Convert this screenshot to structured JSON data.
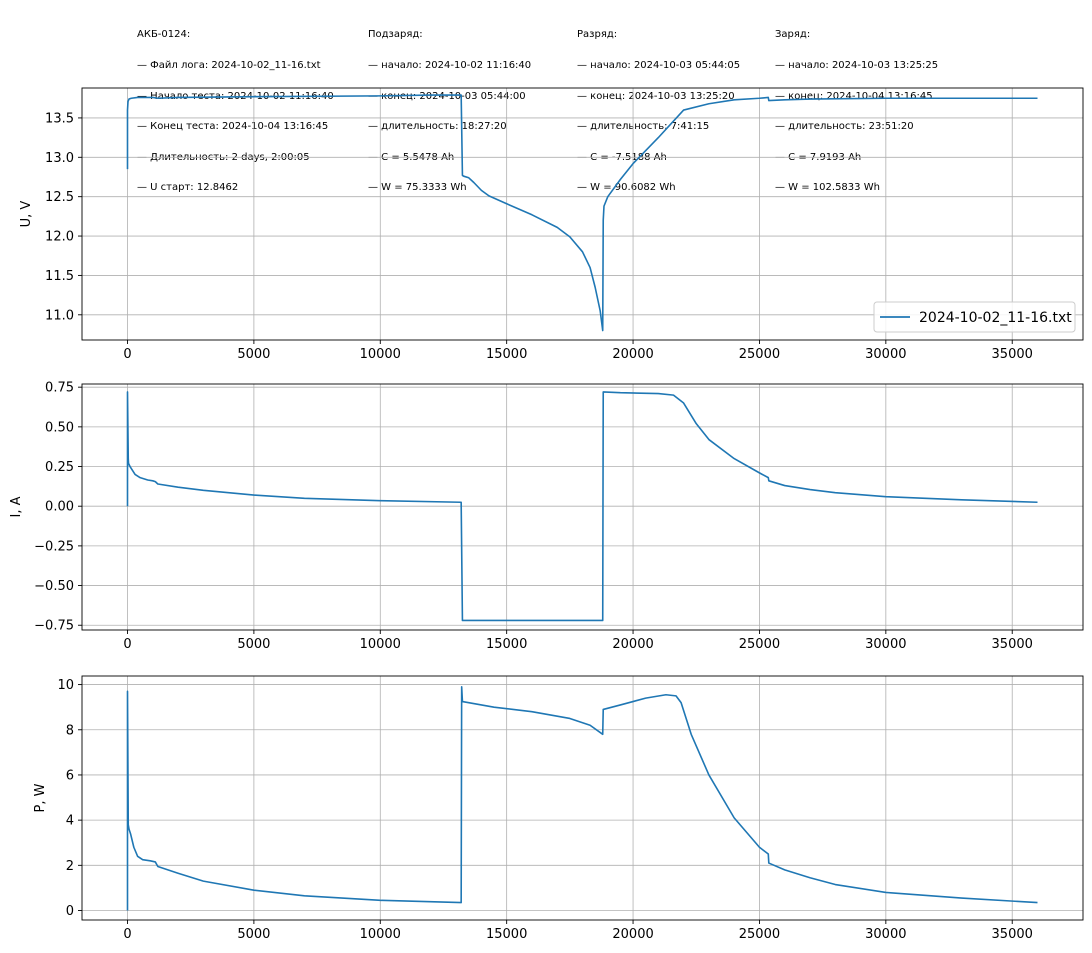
{
  "info": {
    "columns": [
      {
        "title": "АКБ-0124:",
        "lines": [
          "— Файл лога: 2024-10-02_11-16.txt",
          "— Начало теста: 2024-10-02 11:16:40",
          "— Конец теста: 2024-10-04 13:16:45",
          "— Длительность: 2 days, 2:00:05",
          "— U старт: 12.8462"
        ]
      },
      {
        "title": "Подзаряд:",
        "lines": [
          "— начало: 2024-10-02 11:16:40",
          "— конец: 2024-10-03 05:44:00",
          "— длительность: 18:27:20",
          "— C = 5.5478 Ah",
          "— W = 75.3333 Wh"
        ]
      },
      {
        "title": "Разряд:",
        "lines": [
          "— начало: 2024-10-03 05:44:05",
          "— конец: 2024-10-03 13:25:20",
          "— длительность: 7:41:15",
          "— C = -7.5188 Ah",
          "— W = 90.6082 Wh"
        ]
      },
      {
        "title": "Заряд:",
        "lines": [
          "— начало: 2024-10-03 13:25:25",
          "— конец: 2024-10-04 13:16:45",
          "— длительность: 23:51:20",
          "— C = 7.9193 Ah",
          "— W = 102.5833 Wh"
        ]
      }
    ]
  },
  "legend": {
    "label": "2024-10-02_11-16.txt",
    "position": "lower-right"
  },
  "colors": {
    "series": "#1f77b4",
    "grid": "#b0b0b0"
  },
  "chart_data": [
    {
      "type": "line",
      "title": "",
      "xlabel": "",
      "ylabel": "U, V",
      "xlim": [
        -1800,
        37800
      ],
      "ylim": [
        10.68,
        13.88
      ],
      "xticks": [
        0,
        5000,
        10000,
        15000,
        20000,
        25000,
        30000,
        35000
      ],
      "xtick_labels": [
        "0",
        "5000",
        "10000",
        "15000",
        "20000",
        "25000",
        "30000",
        "35000"
      ],
      "yticks": [
        11.0,
        11.5,
        12.0,
        12.5,
        13.0,
        13.5
      ],
      "ytick_labels": [
        "11.0",
        "11.5",
        "12.0",
        "12.5",
        "13.0",
        "13.5"
      ],
      "grid": true,
      "legend": true,
      "series": [
        {
          "name": "2024-10-02_11-16.txt",
          "x": [
            0,
            0,
            20,
            60,
            150,
            400,
            800,
            1000,
            1200,
            2000,
            5000,
            10000,
            12000,
            13200,
            13250,
            13300,
            13500,
            13700,
            14000,
            14300,
            15000,
            16000,
            17000,
            17500,
            18000,
            18300,
            18500,
            18700,
            18800,
            18820,
            18850,
            19000,
            19500,
            20000,
            21000,
            22000,
            23000,
            24000,
            25000,
            25350,
            25370,
            26000,
            27000,
            30000,
            36000
          ],
          "y": [
            12.85,
            13.6,
            13.71,
            13.74,
            13.75,
            13.76,
            13.76,
            13.76,
            13.75,
            13.76,
            13.77,
            13.78,
            13.79,
            13.79,
            12.77,
            12.76,
            12.74,
            12.68,
            12.58,
            12.51,
            12.41,
            12.27,
            12.11,
            11.99,
            11.8,
            11.6,
            11.35,
            11.05,
            10.8,
            12.2,
            12.38,
            12.5,
            12.72,
            12.92,
            13.25,
            13.6,
            13.68,
            13.73,
            13.75,
            13.76,
            13.72,
            13.73,
            13.74,
            13.75,
            13.75
          ]
        }
      ]
    },
    {
      "type": "line",
      "title": "",
      "xlabel": "",
      "ylabel": "I, A",
      "xlim": [
        -1800,
        37800
      ],
      "ylim": [
        -0.78,
        0.77
      ],
      "xticks": [
        0,
        5000,
        10000,
        15000,
        20000,
        25000,
        30000,
        35000
      ],
      "xtick_labels": [
        "0",
        "5000",
        "10000",
        "15000",
        "20000",
        "25000",
        "30000",
        "35000"
      ],
      "yticks": [
        -0.75,
        -0.5,
        -0.25,
        0.0,
        0.25,
        0.5,
        0.75
      ],
      "ytick_labels": [
        "−0.75",
        "−0.50",
        "−0.25",
        "0.00",
        "0.25",
        "0.50",
        "0.75"
      ],
      "grid": true,
      "legend": false,
      "series": [
        {
          "name": "",
          "x": [
            0,
            0,
            30,
            40,
            100,
            300,
            500,
            800,
            1000,
            1100,
            1200,
            2000,
            3000,
            5000,
            7000,
            10000,
            13200,
            13250,
            18800,
            18820,
            19500,
            21000,
            21600,
            22000,
            22500,
            23000,
            24000,
            25000,
            25350,
            25370,
            26000,
            27000,
            28000,
            30000,
            33000,
            36000
          ],
          "y": [
            0.0,
            0.72,
            0.3,
            0.27,
            0.25,
            0.2,
            0.18,
            0.165,
            0.16,
            0.155,
            0.14,
            0.12,
            0.1,
            0.07,
            0.05,
            0.035,
            0.025,
            -0.72,
            -0.72,
            0.72,
            0.715,
            0.71,
            0.7,
            0.65,
            0.52,
            0.42,
            0.3,
            0.21,
            0.18,
            0.16,
            0.13,
            0.105,
            0.085,
            0.06,
            0.04,
            0.025
          ]
        }
      ]
    },
    {
      "type": "line",
      "title": "",
      "xlabel": "",
      "ylabel": "P, W",
      "xlim": [
        -1800,
        37800
      ],
      "ylim": [
        -0.42,
        10.38
      ],
      "xticks": [
        0,
        5000,
        10000,
        15000,
        20000,
        25000,
        30000,
        35000
      ],
      "xtick_labels": [
        "0",
        "5000",
        "10000",
        "15000",
        "20000",
        "25000",
        "30000",
        "35000"
      ],
      "yticks": [
        0,
        2,
        4,
        6,
        8,
        10
      ],
      "ytick_labels": [
        "0",
        "2",
        "4",
        "6",
        "8",
        "10"
      ],
      "grid": true,
      "legend": false,
      "series": [
        {
          "name": "",
          "x": [
            0,
            0,
            30,
            60,
            120,
            250,
            400,
            600,
            900,
            1100,
            1200,
            2000,
            3000,
            5000,
            7000,
            10000,
            13200,
            13220,
            13250,
            13500,
            14500,
            16000,
            17500,
            18300,
            18800,
            18820,
            19500,
            20500,
            21300,
            21700,
            21900,
            22300,
            23000,
            24000,
            25000,
            25350,
            25370,
            26000,
            27000,
            28000,
            30000,
            33000,
            36000
          ],
          "y": [
            0.0,
            9.7,
            3.8,
            3.6,
            3.4,
            2.8,
            2.4,
            2.25,
            2.2,
            2.15,
            1.95,
            1.65,
            1.3,
            0.9,
            0.65,
            0.45,
            0.35,
            9.9,
            9.25,
            9.2,
            9.0,
            8.8,
            8.5,
            8.2,
            7.8,
            8.9,
            9.1,
            9.4,
            9.55,
            9.5,
            9.2,
            7.8,
            6.0,
            4.1,
            2.8,
            2.5,
            2.1,
            1.8,
            1.45,
            1.15,
            0.8,
            0.55,
            0.35
          ]
        }
      ]
    }
  ]
}
